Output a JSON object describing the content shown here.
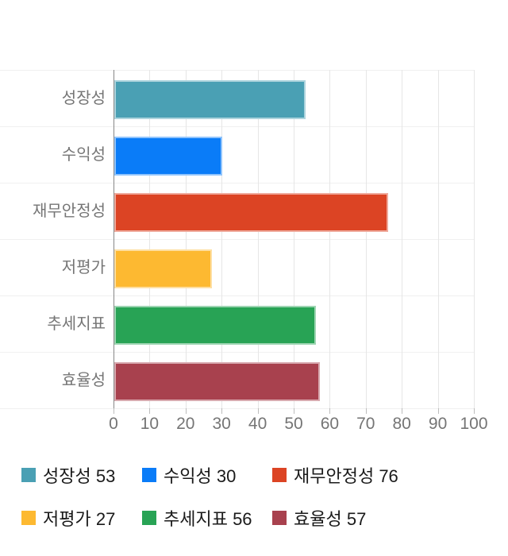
{
  "chart_data": {
    "type": "bar",
    "orientation": "horizontal",
    "title": "",
    "categories": [
      "성장성",
      "수익성",
      "재무안정성",
      "저평가",
      "추세지표",
      "효율성"
    ],
    "values": [
      53,
      30,
      76,
      27,
      56,
      57
    ],
    "series_colors": [
      "#4AA0B4",
      "#0A7CF8",
      "#DC4424",
      "#FDB931",
      "#28A355",
      "#A8414E"
    ],
    "xlim": [
      0,
      100
    ],
    "x_ticks": [
      0,
      10,
      20,
      30,
      40,
      50,
      60,
      70,
      80,
      90,
      100
    ],
    "grid": true,
    "legend_position": "bottom",
    "legend_labels": [
      "성장성 53",
      "수익성 30",
      "재무안정성 76",
      "저평가 27",
      "추세지표 56",
      "효율성 57"
    ]
  },
  "colors": {
    "background": "#ffffff",
    "axis_text": "#757575",
    "legend_text": "#1a1a1a",
    "gridline": "#e6e6e6",
    "row_line": "#f0f0f0",
    "axis_line": "#888888",
    "tick_mark": "#bdbdbd"
  }
}
